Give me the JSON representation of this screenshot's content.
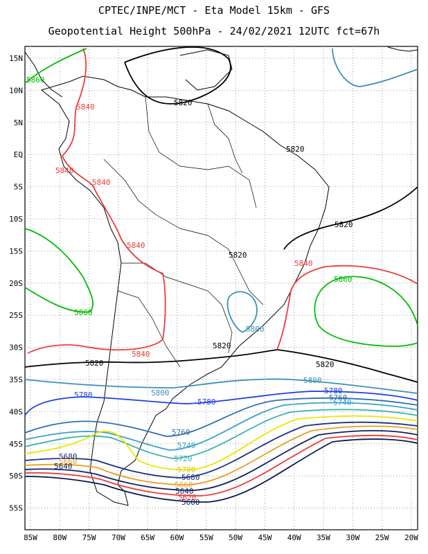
{
  "header": {
    "line1": "CPTEC/INPE/MCT -  Eta Model 15km - GFS",
    "line2": "Geopotential Height 500hPa - 24/02/2021 12UTC fct=67h"
  },
  "map": {
    "lat_ticks": [
      "15N",
      "10N",
      "5N",
      "EQ",
      "5S",
      "10S",
      "15S",
      "20S",
      "25S",
      "30S",
      "35S",
      "40S",
      "45S",
      "50S",
      "55S"
    ],
    "lon_ticks": [
      "85W",
      "80W",
      "75W",
      "70W",
      "65W",
      "60W",
      "55W",
      "50W",
      "45W",
      "40W",
      "35W",
      "30W",
      "25W",
      "20W"
    ],
    "contour_levels": [
      {
        "value": "5820",
        "color": "#000000"
      },
      {
        "value": "5840",
        "color": "#ee3b3b"
      },
      {
        "value": "5860",
        "color": "#00bb00"
      },
      {
        "value": "5800",
        "color": "#3a8fb7"
      },
      {
        "value": "5780",
        "color": "#1c3fe0"
      },
      {
        "value": "5760",
        "color": "#2f6fb0"
      },
      {
        "value": "5740",
        "color": "#3aa0c8"
      },
      {
        "value": "5720",
        "color": "#3ab0b0"
      },
      {
        "value": "5700",
        "color": "#e8e800"
      },
      {
        "value": "5680",
        "color": "#1b2f80"
      },
      {
        "value": "5660",
        "color": "#e8a020"
      },
      {
        "value": "5640",
        "color": "#102060"
      },
      {
        "value": "5620",
        "color": "#ee3b3b"
      },
      {
        "value": "5600",
        "color": "#0a1a50"
      }
    ],
    "labels": [
      {
        "text": "5820",
        "color": "#000000"
      },
      {
        "text": "5820",
        "color": "#000000"
      },
      {
        "text": "5820",
        "color": "#000000"
      },
      {
        "text": "5820",
        "color": "#000000"
      },
      {
        "text": "5820",
        "color": "#000000"
      },
      {
        "text": "5820",
        "color": "#000000"
      },
      {
        "text": "5820",
        "color": "#000000"
      },
      {
        "text": "5840",
        "color": "#ee3b3b"
      },
      {
        "text": "5840",
        "color": "#ee3b3b"
      },
      {
        "text": "5840",
        "color": "#ee3b3b"
      },
      {
        "text": "5840",
        "color": "#ee3b3b"
      },
      {
        "text": "5840",
        "color": "#ee3b3b"
      },
      {
        "text": "5840",
        "color": "#ee3b3b"
      },
      {
        "text": "5860",
        "color": "#00bb00"
      },
      {
        "text": "5860",
        "color": "#00bb00"
      },
      {
        "text": "5800",
        "color": "#3a8fb7"
      },
      {
        "text": "5800",
        "color": "#3a8fb7"
      },
      {
        "text": "5800",
        "color": "#3a8fb7"
      },
      {
        "text": "5780",
        "color": "#1c3fe0"
      },
      {
        "text": "5780",
        "color": "#1c3fe0"
      },
      {
        "text": "5780",
        "color": "#1c3fe0"
      },
      {
        "text": "5760",
        "color": "#2f6fb0"
      },
      {
        "text": "5760",
        "color": "#2f6fb0"
      },
      {
        "text": "5740",
        "color": "#3aa0c8"
      },
      {
        "text": "5740",
        "color": "#3aa0c8"
      },
      {
        "text": "5720",
        "color": "#3ab0b0"
      },
      {
        "text": "5700",
        "color": "#d8c800"
      },
      {
        "text": "5680",
        "color": "#1b2f80"
      },
      {
        "text": "5680",
        "color": "#1b2f80"
      },
      {
        "text": "5660",
        "color": "#e8a020"
      },
      {
        "text": "5660",
        "color": "#e8a020"
      },
      {
        "text": "5640",
        "color": "#102060"
      },
      {
        "text": "5640",
        "color": "#102060"
      },
      {
        "text": "5620",
        "color": "#ee3b3b"
      },
      {
        "text": "5600",
        "color": "#0a1a50"
      },
      {
        "text": "5860",
        "color": "#00bb00"
      }
    ]
  }
}
